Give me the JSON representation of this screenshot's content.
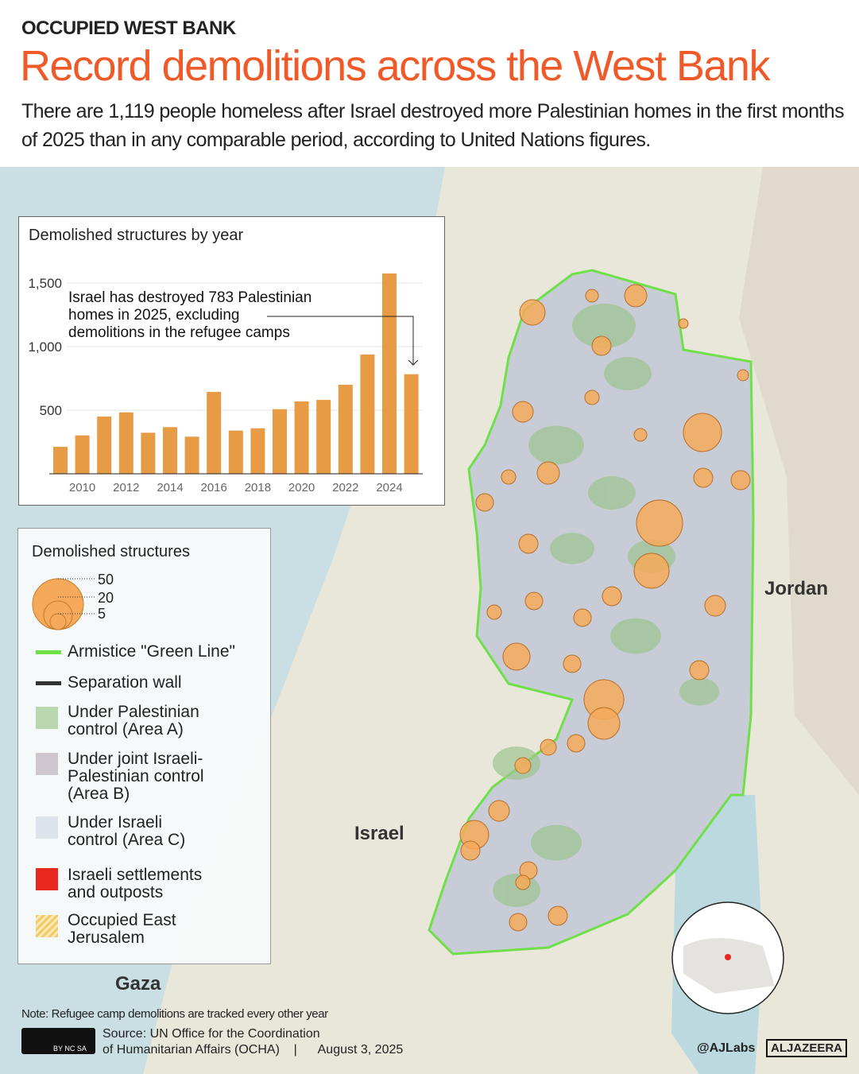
{
  "header": {
    "kicker": "OCCUPIED WEST BANK",
    "title": "Record demolitions across the West Bank",
    "subtitle": "There are 1,119 people homeless after Israel destroyed more Palestinian homes in the first months of 2025 than in any comparable period, according to United Nations figures."
  },
  "map_labels": {
    "jordan": "Jordan",
    "israel": "Israel",
    "gaza": "Gaza"
  },
  "colors": {
    "accent": "#f05a28",
    "bar": "#e79b45",
    "green_line": "#6fe04a",
    "area_a": "#b9d8b0",
    "area_b": "#cfc7d0",
    "area_c": "#dce3ea",
    "settlement": "#e8281e",
    "demolition": "#f6a95a"
  },
  "chart_data": {
    "type": "bar",
    "title": "Demolished structures by year",
    "categories": [
      "2009",
      "2010",
      "2011",
      "2012",
      "2013",
      "2014",
      "2015",
      "2016",
      "2017",
      "2018",
      "2019",
      "2020",
      "2021",
      "2022",
      "2023",
      "2024",
      "2025"
    ],
    "values": [
      212,
      302,
      450,
      483,
      323,
      367,
      292,
      644,
      340,
      358,
      508,
      569,
      581,
      700,
      938,
      1575,
      783
    ],
    "x_tick_labels": [
      "2010",
      "2012",
      "2014",
      "2016",
      "2018",
      "2020",
      "2022",
      "2024"
    ],
    "y_tick_labels": [
      "500",
      "1,000",
      "1,500"
    ],
    "ylim": [
      0,
      1600
    ],
    "grid": true,
    "annotation": [
      "Israel has destroyed 783 Palestinian",
      "homes in 2025, excluding",
      "demolitions in the refugee camps"
    ]
  },
  "legend": {
    "title": "Demolished structures",
    "sizes": [
      "50",
      "20",
      "5"
    ],
    "items": [
      {
        "label": "Armistice \"Green Line\""
      },
      {
        "label": "Separation wall"
      },
      {
        "label": "Under Palestinian control (Area A)"
      },
      {
        "label": "Under joint Israeli-Palestinian control (Area B)"
      },
      {
        "label": "Under Israeli control (Area C)"
      },
      {
        "label": "Israeli settlements and outposts"
      },
      {
        "label": "Occupied East Jerusalem"
      }
    ]
  },
  "footer": {
    "note": "Note: Refugee camp demolitions are tracked every other year",
    "source_line1": "Source:  UN Office for the Coordination",
    "source_line2": "of Humanitarian Affairs (OCHA)    |      August 3, 2025",
    "cc": "BY NC SA",
    "handle": "@AJLabs",
    "brand": "ALJAZEERA"
  }
}
